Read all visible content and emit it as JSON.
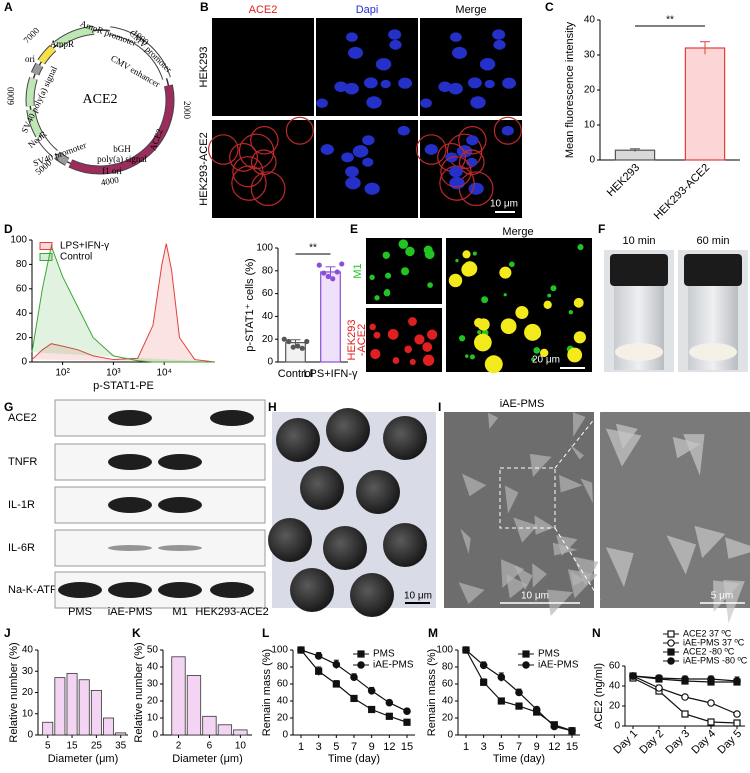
{
  "panel_labels": [
    "A",
    "B",
    "C",
    "D",
    "E",
    "F",
    "G",
    "H",
    "I",
    "J",
    "K",
    "L",
    "M",
    "N"
  ],
  "plasmid": {
    "name": "ACE2",
    "features": [
      "AmpR",
      "AmpR promoter",
      "CMV enhancer",
      "CMV promoter",
      "ACE2",
      "bGH",
      "poly(a) signal",
      "f1 ori",
      "SV40 promoter",
      "NeoR",
      "SV40 poly(a) signal",
      "ori"
    ],
    "positions": [
      1000,
      2000,
      4000,
      5000,
      6000,
      7000
    ]
  },
  "microscopy_b": {
    "columns": [
      "ACE2",
      "Dapi",
      "Merge"
    ],
    "rows": [
      "HEK293",
      "HEK293-ACE2"
    ],
    "scale": "10 μm"
  },
  "microscopy_e": {
    "top": "M1",
    "bottom": [
      "HEK293",
      "-ACE2"
    ],
    "merge": "Merge",
    "scale": "20 μm"
  },
  "photos_f": [
    "10 min",
    "60 min"
  ],
  "western": {
    "rows": [
      "ACE2",
      "TNFR",
      "IL-1R",
      "IL-6R",
      "Na-K-ATP"
    ],
    "columns": [
      "PMS",
      "iAE-PMS",
      "M1",
      "HEK293-ACE2"
    ]
  },
  "image_h": {
    "scale": "10 μm"
  },
  "image_i": {
    "title": "iAE-PMS",
    "scales": [
      "10 μm",
      "5 μm"
    ]
  },
  "chart_data": [
    {
      "type": "bar",
      "categories": [
        "HEK293",
        "HEK293-ACE2"
      ],
      "values": [
        2.8,
        32
      ],
      "errors": [
        0.4,
        1.8
      ],
      "colors": [
        "#d9d9d9",
        "#fcd6d6"
      ],
      "edge_colors": [
        "#555555",
        "#e0413b"
      ],
      "ylabel": "Mean fluorescence intensity",
      "ylim": [
        0,
        40
      ],
      "yticks": [
        0,
        10,
        20,
        30,
        40
      ],
      "annotation": "**"
    },
    {
      "type": "area",
      "x": [
        25,
        40,
        60,
        100,
        200,
        400,
        1000,
        3000,
        6000,
        9000,
        11000,
        14000,
        20000,
        40000,
        100000
      ],
      "xscale": "log",
      "xlim": [
        25,
        100000
      ],
      "xticks": [
        {
          "value": 100,
          "label": "10²"
        },
        {
          "value": 1000,
          "label": "10³"
        },
        {
          "value": 10000,
          "label": "10⁴"
        }
      ],
      "ylim": [
        0,
        100
      ],
      "yticks": [
        0,
        20,
        40,
        60,
        80,
        100
      ],
      "xlabel": "p-STAT1-PE",
      "legend": "upper left",
      "series": [
        {
          "name": "LPS+IFN-γ",
          "color": "#e0413b",
          "values": [
            2,
            10,
            15,
            13,
            10,
            5,
            2,
            3,
            30,
            80,
            97,
            75,
            20,
            2,
            0
          ]
        },
        {
          "name": "Control",
          "color": "#3aa635",
          "values": [
            8,
            60,
            95,
            70,
            45,
            20,
            5,
            1,
            0,
            0,
            0,
            0,
            0,
            0,
            0
          ]
        }
      ]
    },
    {
      "type": "bar",
      "categories": [
        "Control",
        "LPS+IFN-γ"
      ],
      "values": [
        17,
        79
      ],
      "errors": [
        2.5,
        4.5
      ],
      "points": [
        [
          20,
          18,
          13,
          14,
          12,
          18
        ],
        [
          85,
          78,
          75,
          73,
          79,
          86
        ]
      ],
      "colors": [
        "#f2f2f2",
        "#efe0fb"
      ],
      "edge_colors": [
        "#555555",
        "#8a4fd8"
      ],
      "point_colors": [
        "#555555",
        "#8a4fd8"
      ],
      "ylabel": "p-STAT1⁺ cells (%)",
      "ylim": [
        0,
        100
      ],
      "yticks": [
        0,
        20,
        40,
        60,
        80,
        100
      ],
      "annotation": "**"
    },
    {
      "type": "histogram",
      "bins": [
        2.5,
        7.5,
        12.5,
        17.5,
        22.5,
        27.5,
        32.5,
        37.5
      ],
      "values": [
        6,
        27,
        29,
        26,
        21,
        8,
        1
      ],
      "color": "#f3d4f3",
      "edge_color": "#333333",
      "xlim": [
        1,
        38
      ],
      "xticks": [
        5,
        15,
        25,
        35
      ],
      "ylim": [
        0,
        40
      ],
      "yticks": [
        0,
        10,
        20,
        30,
        40
      ],
      "xlabel": "Diameter (μm)",
      "ylabel": "Relative number (%)"
    },
    {
      "type": "histogram",
      "bins": [
        1,
        3,
        5,
        7,
        9,
        11
      ],
      "values": [
        46,
        35,
        11,
        6,
        3
      ],
      "color": "#f3d4f3",
      "edge_color": "#333333",
      "xlim": [
        0,
        11.5
      ],
      "xticks": [
        2,
        6,
        10
      ],
      "ylim": [
        0,
        50
      ],
      "yticks": [
        0,
        10,
        20,
        30,
        40,
        50
      ],
      "xlabel": "Diameter (μm)",
      "ylabel": "Relative number (%)"
    },
    {
      "type": "line",
      "categories": [
        "1",
        "3",
        "5",
        "7",
        "9",
        "12",
        "15"
      ],
      "xlabel": "Time (day)",
      "ylabel": "Remain mass (%)",
      "ylim": [
        0,
        100
      ],
      "yticks": [
        0,
        20,
        40,
        60,
        80,
        100
      ],
      "legend": "upper right",
      "series": [
        {
          "name": "PMS",
          "color": "#111111",
          "marker": "square",
          "filled": true,
          "values": [
            100,
            75,
            60,
            43,
            30,
            22,
            15
          ],
          "errors": [
            0,
            5,
            4,
            3,
            3,
            2,
            2
          ]
        },
        {
          "name": "iAE-PMS",
          "color": "#111111",
          "marker": "circle",
          "filled": true,
          "values": [
            100,
            93,
            83,
            68,
            52,
            38,
            28
          ],
          "errors": [
            0,
            4,
            5,
            4,
            4,
            3,
            3
          ]
        }
      ]
    },
    {
      "type": "line",
      "categories": [
        "1",
        "3",
        "5",
        "7",
        "9",
        "12",
        "15"
      ],
      "xlabel": "Time (day)",
      "ylabel": "Remain mass (%)",
      "ylim": [
        0,
        100
      ],
      "yticks": [
        0,
        20,
        40,
        60,
        80,
        100
      ],
      "legend": "upper right",
      "series": [
        {
          "name": "PMS",
          "color": "#111111",
          "marker": "square",
          "filled": true,
          "values": [
            100,
            62,
            40,
            34,
            27,
            12,
            5
          ],
          "errors": [
            0,
            4,
            3,
            3,
            3,
            2,
            1
          ]
        },
        {
          "name": "iAE-PMS",
          "color": "#111111",
          "marker": "circle",
          "filled": true,
          "values": [
            100,
            82,
            68,
            50,
            30,
            10,
            5
          ],
          "errors": [
            0,
            4,
            5,
            4,
            3,
            2,
            1
          ]
        }
      ]
    },
    {
      "type": "line",
      "categories": [
        "Day 1",
        "Day 2",
        "Day 3",
        "Day 4",
        "Day 5"
      ],
      "ylabel": "ACE2 (ng/ml)",
      "ylim": [
        0,
        60
      ],
      "yticks": [
        0,
        20,
        40,
        60
      ],
      "legend": "top",
      "series": [
        {
          "name": "ACE2 37 ºC",
          "color": "#111111",
          "marker": "square",
          "filled": false,
          "values": [
            48,
            35,
            12,
            4,
            3
          ],
          "errors": [
            2,
            2,
            1,
            1,
            1
          ]
        },
        {
          "name": "iAE-PMS 37 ºC",
          "color": "#111111",
          "marker": "circle",
          "filled": false,
          "values": [
            50,
            38,
            29,
            23,
            12
          ],
          "errors": [
            2,
            3,
            2,
            2,
            1
          ]
        },
        {
          "name": "ACE2 -80 ºC",
          "color": "#111111",
          "marker": "square",
          "filled": true,
          "values": [
            50,
            47,
            45,
            44,
            44
          ],
          "errors": [
            2,
            3,
            3,
            3,
            3
          ]
        },
        {
          "name": "iAE-PMS -80 ºC",
          "color": "#111111",
          "marker": "circle",
          "filled": true,
          "values": [
            50,
            48,
            47,
            47,
            45
          ],
          "errors": [
            2,
            3,
            3,
            3,
            4
          ]
        }
      ]
    }
  ]
}
